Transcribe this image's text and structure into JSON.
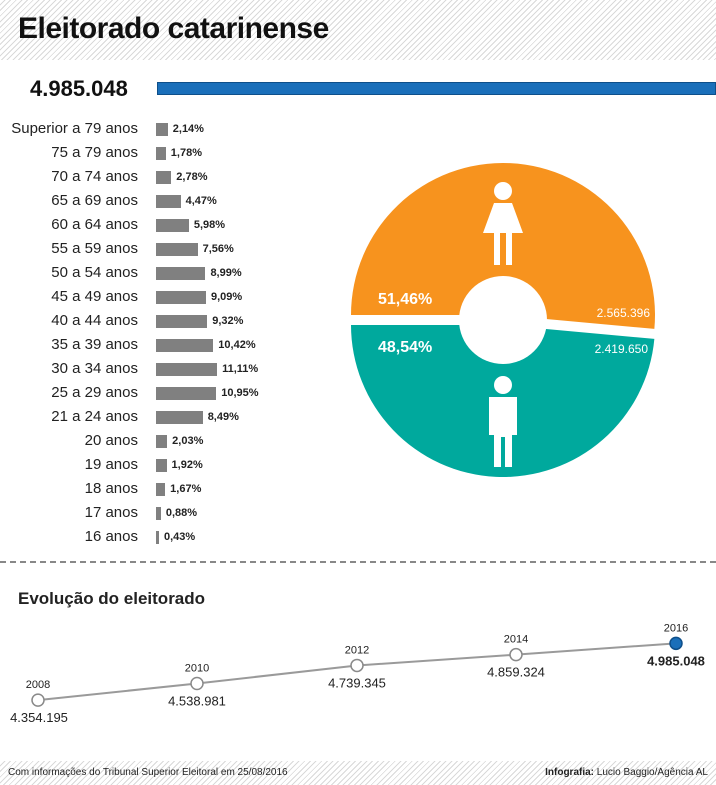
{
  "title": "Eleitorado catarinense",
  "total": "4.985.048",
  "colors": {
    "accent": "#1a6fba",
    "female": "#f7931e",
    "male": "#00a99d",
    "bar": "#808080"
  },
  "icons": {
    "female": "woman-icon",
    "male": "man-icon"
  },
  "chart_data": [
    {
      "type": "bar",
      "orientation": "horizontal",
      "categories": [
        "Superior a 79 anos",
        "75 a 79 anos",
        "70 a 74 anos",
        "65 a 69 anos",
        "60 a 64 anos",
        "55 a 59 anos",
        "50 a 54 anos",
        "45 a 49 anos",
        "40 a 44 anos",
        "35 a 39 anos",
        "30 a 34 anos",
        "25 a 29 anos",
        "21 a 24 anos",
        "20 anos",
        "19 anos",
        "18 anos",
        "17 anos",
        "16 anos"
      ],
      "values": [
        2.14,
        1.78,
        2.78,
        4.47,
        5.98,
        7.56,
        8.99,
        9.09,
        9.32,
        10.42,
        11.11,
        10.95,
        8.49,
        2.03,
        1.92,
        1.67,
        0.88,
        0.43
      ],
      "value_labels": [
        "2,14%",
        "1,78%",
        "2,78%",
        "4,47%",
        "5,98%",
        "7,56%",
        "8,99%",
        "9,09%",
        "9,32%",
        "10,42%",
        "11,11%",
        "10,95%",
        "8,49%",
        "2,03%",
        "1,92%",
        "1,67%",
        "0,88%",
        "0,43%"
      ]
    },
    {
      "type": "pie",
      "slices": [
        {
          "value": 51.46,
          "pct_label": "51,46%",
          "count": "2.565.396",
          "color": "#f7931e",
          "icon": "woman-icon"
        },
        {
          "value": 48.54,
          "pct_label": "48,54%",
          "count": "2.419.650",
          "color": "#00a99d",
          "icon": "man-icon"
        }
      ]
    },
    {
      "type": "line",
      "title": "Evolução do eleitorado",
      "x": [
        "2008",
        "2010",
        "2012",
        "2014",
        "2016"
      ],
      "values": [
        4354195,
        4538981,
        4739345,
        4859324,
        4985048
      ],
      "value_labels": [
        "4.354.195",
        "4.538.981",
        "4.739.345",
        "4.859.324",
        "4.985.048"
      ]
    }
  ],
  "footer": {
    "source": "Com informações do Tribunal Superior Eleitoral em 25/08/2016",
    "credit_label": "Infografia:",
    "credit_name": " Lucio Baggio/Agência AL"
  }
}
